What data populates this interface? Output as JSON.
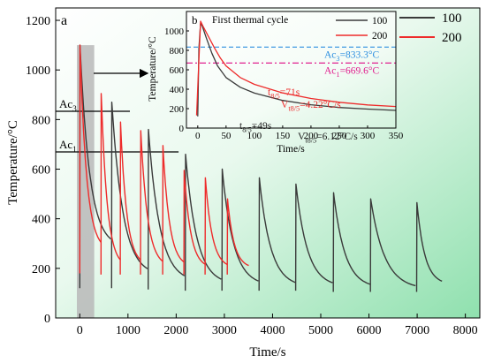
{
  "chart_data": [
    {
      "panel_label": "a",
      "type": "line",
      "xlabel": "Time/s",
      "ylabel": "Temperature/°C",
      "xlim": [
        -500,
        8300
      ],
      "ylim": [
        0,
        1250
      ],
      "xticks": [
        0,
        1000,
        2000,
        3000,
        4000,
        5000,
        6000,
        7000,
        8000
      ],
      "yticks": [
        0,
        200,
        400,
        600,
        800,
        1000,
        1200
      ],
      "legend_position": "top-right",
      "reference_lines": [
        {
          "label": "Ac3",
          "label_main": "Ac",
          "label_sub": "3",
          "y": 833.3,
          "x_range": [
            -500,
            1040
          ]
        },
        {
          "label": "Ac1",
          "label_main": "Ac",
          "label_sub": "1",
          "y": 669.6,
          "x_range": [
            -500,
            2050
          ]
        }
      ],
      "highlight_region": {
        "x": [
          -60,
          300
        ],
        "y": [
          0,
          1100
        ],
        "color": "#b9b9b9"
      },
      "series": [
        {
          "name": "100",
          "color": "#3a3a3a",
          "cycles": [
            {
              "start": 0,
              "peak": 1100,
              "end": 285,
              "floor": 120,
              "dur": 640
            },
            {
              "start": 660,
              "peak": 870,
              "end": 170,
              "floor": 120,
              "dur": 740
            },
            {
              "start": 1420,
              "peak": 760,
              "end": 145,
              "floor": 115,
              "dur": 750
            },
            {
              "start": 2190,
              "peak": 660,
              "end": 135,
              "floor": 110,
              "dur": 740
            },
            {
              "start": 2950,
              "peak": 600,
              "end": 130,
              "floor": 110,
              "dur": 750
            },
            {
              "start": 3720,
              "peak": 565,
              "end": 125,
              "floor": 110,
              "dur": 750
            },
            {
              "start": 4480,
              "peak": 540,
              "end": 125,
              "floor": 110,
              "dur": 760
            },
            {
              "start": 5260,
              "peak": 505,
              "end": 120,
              "floor": 105,
              "dur": 760
            },
            {
              "start": 6030,
              "peak": 480,
              "end": 115,
              "floor": 105,
              "dur": 930
            },
            {
              "start": 6990,
              "peak": 465,
              "end": 135,
              "floor": 105,
              "dur": 520
            }
          ]
        },
        {
          "name": "200",
          "color": "#ee2b2b",
          "cycles": [
            {
              "start": 0,
              "peak": 1100,
              "end": 270,
              "floor": 180,
              "dur": 440
            },
            {
              "start": 440,
              "peak": 905,
              "end": 205,
              "floor": 175,
              "dur": 400
            },
            {
              "start": 840,
              "peak": 790,
              "end": 210,
              "floor": 175,
              "dur": 420
            },
            {
              "start": 1260,
              "peak": 755,
              "end": 205,
              "floor": 175,
              "dur": 460
            },
            {
              "start": 1720,
              "peak": 695,
              "end": 205,
              "floor": 175,
              "dur": 440
            },
            {
              "start": 2160,
              "peak": 595,
              "end": 200,
              "floor": 175,
              "dur": 440
            },
            {
              "start": 2600,
              "peak": 565,
              "end": 200,
              "floor": 175,
              "dur": 460
            },
            {
              "start": 3060,
              "peak": 480,
              "end": 200,
              "floor": 175,
              "dur": 440
            }
          ]
        }
      ]
    },
    {
      "panel_label": "b",
      "type": "line",
      "title": "First thermal cycle",
      "xlabel": "Time/s",
      "ylabel": "Temperature/°C",
      "xlim": [
        -20,
        350
      ],
      "ylim": [
        0,
        1200
      ],
      "xticks": [
        0,
        50,
        100,
        150,
        200,
        250,
        300,
        350
      ],
      "yticks": [
        0,
        200,
        400,
        600,
        800,
        1000
      ],
      "legend_position": "top-right",
      "reference_lines": [
        {
          "label": "Ac3=833.3°C",
          "label_main": "Ac",
          "label_sub": "3",
          "label_rest": "=833.3°C",
          "y": 833.3,
          "color": "#2e8fe0",
          "dash": "5,3"
        },
        {
          "label": "Ac1=669.6°C",
          "label_main": "Ac",
          "label_sub": "1",
          "label_rest": "=669.6°C",
          "y": 669.6,
          "color": "#e0208f",
          "dash": "7,3,2,3"
        }
      ],
      "annotations": [
        {
          "series": "200",
          "main": "t",
          "sub": "8/5",
          "rest": "=71s",
          "color": "#ee2b2b"
        },
        {
          "series": "200",
          "main": "V",
          "sub": "t8/5",
          "rest": "=4.22°C/s",
          "color": "#ee2b2b"
        },
        {
          "series": "100",
          "main": "t",
          "sub": "8/5",
          "rest": "=49s",
          "color": "#222222"
        },
        {
          "series": "100",
          "main": "V",
          "sub": "t8/5",
          "rest": "=6.12°C/s",
          "color": "#222222"
        }
      ],
      "series": [
        {
          "name": "100",
          "color": "#3a3a3a",
          "points": [
            [
              0,
              120
            ],
            [
              2,
              820
            ],
            [
              5,
              1080
            ],
            [
              8,
              1050
            ],
            [
              15,
              930
            ],
            [
              25,
              770
            ],
            [
              35,
              640
            ],
            [
              50,
              520
            ],
            [
              75,
              420
            ],
            [
              100,
              360
            ],
            [
              150,
              285
            ],
            [
              200,
              240
            ],
            [
              250,
              212
            ],
            [
              300,
              195
            ],
            [
              350,
              182
            ]
          ]
        },
        {
          "name": "200",
          "color": "#ee2b2b",
          "points": [
            [
              -2,
              130
            ],
            [
              2,
              700
            ],
            [
              5,
              1100
            ],
            [
              10,
              1040
            ],
            [
              20,
              930
            ],
            [
              30,
              820
            ],
            [
              40,
              720
            ],
            [
              50,
              640
            ],
            [
              75,
              520
            ],
            [
              100,
              450
            ],
            [
              150,
              362
            ],
            [
              200,
              305
            ],
            [
              250,
              265
            ],
            [
              300,
              238
            ],
            [
              350,
              222
            ]
          ]
        }
      ]
    }
  ]
}
